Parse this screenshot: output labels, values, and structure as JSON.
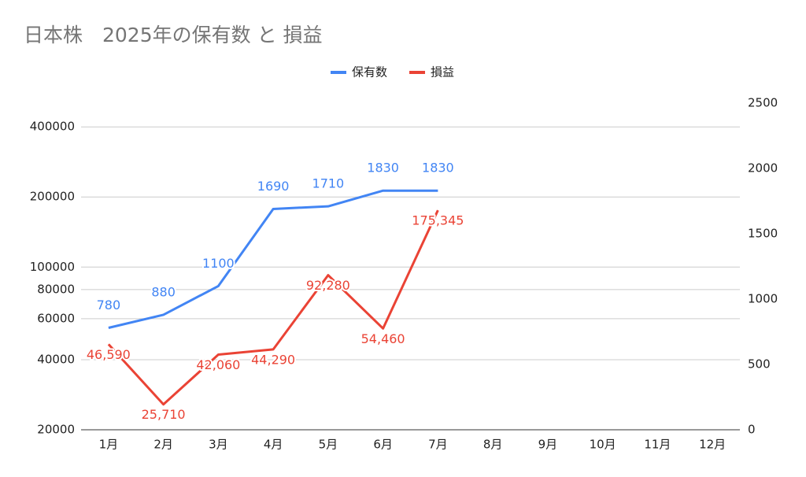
{
  "chart_data": {
    "type": "line",
    "title": "日本株　2025年の保有数 と 損益",
    "categories": [
      "1月",
      "2月",
      "3月",
      "4月",
      "5月",
      "6月",
      "7月",
      "8月",
      "9月",
      "10月",
      "11月",
      "12月"
    ],
    "series": [
      {
        "name": "保有数",
        "color": "#4285f4",
        "axis": "y2",
        "values": [
          780,
          880,
          1100,
          1690,
          1710,
          1830,
          1830,
          null,
          null,
          null,
          null,
          null
        ]
      },
      {
        "name": "損益",
        "color": "#ea4335",
        "values": [
          46590,
          25710,
          42060,
          44290,
          92280,
          54460,
          175345,
          null,
          null,
          null,
          null,
          null
        ],
        "value_labels": [
          "46,590",
          "25,710",
          "42,060",
          "44,290",
          "92,280",
          "54,460",
          "175,345",
          null,
          null,
          null,
          null,
          null
        ]
      }
    ],
    "ylog": true,
    "ylim": [
      20000,
      506000
    ],
    "yticks": [
      20000,
      40000,
      60000,
      80000,
      100000,
      200000,
      400000
    ],
    "y2lim": [
      0,
      2500
    ],
    "y2ticks": [
      0,
      500,
      1000,
      1500,
      2000,
      2500
    ],
    "grid": true,
    "legend": "top"
  }
}
